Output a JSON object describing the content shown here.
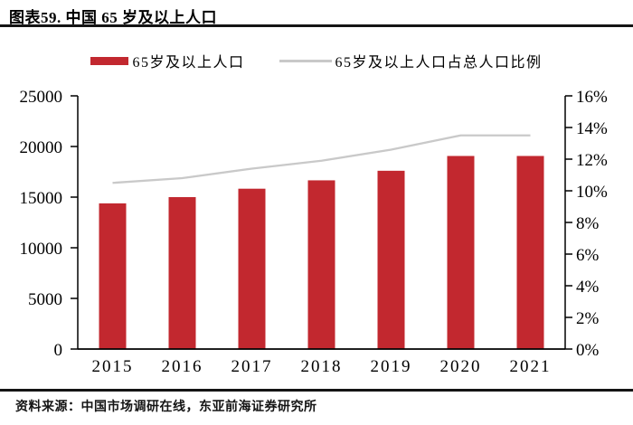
{
  "header": {
    "title": "图表59. 中国 65 岁及以上人口"
  },
  "legend": [
    {
      "label": "65岁及以上人口",
      "marker": "bar-swatch"
    },
    {
      "label": "65岁及以上人口占总人口比例",
      "marker": "line-swatch"
    }
  ],
  "chart_data": {
    "type": "bar",
    "title": "中国 65 岁及以上人口",
    "categories": [
      "2015",
      "2016",
      "2017",
      "2018",
      "2019",
      "2020",
      "2021"
    ],
    "series": [
      {
        "name": "65岁及以上人口",
        "type": "bar",
        "axis": "left",
        "values": [
          14386,
          15003,
          15831,
          16658,
          17603,
          19064,
          19064
        ]
      },
      {
        "name": "65岁及以上人口占总人口比例",
        "type": "line",
        "axis": "right",
        "values": [
          10.5,
          10.8,
          11.4,
          11.9,
          12.6,
          13.5,
          13.5
        ]
      }
    ],
    "left_axis": {
      "min": 0,
      "max": 25000,
      "step": 5000,
      "tick_labels": [
        "0",
        "5000",
        "10000",
        "15000",
        "20000",
        "25000"
      ]
    },
    "right_axis": {
      "min": 0,
      "max": 16,
      "step": 2,
      "tick_labels": [
        "0%",
        "2%",
        "4%",
        "6%",
        "8%",
        "10%",
        "12%",
        "14%",
        "16%"
      ]
    },
    "grid": false,
    "legend_position": "top"
  },
  "colors": {
    "bar": "#C2282F",
    "line": "#C9C9C9",
    "axis": "#000000",
    "rule": "#141414"
  },
  "footer": {
    "source": "资料来源：中国市场调研在线，东亚前海证券研究所"
  }
}
